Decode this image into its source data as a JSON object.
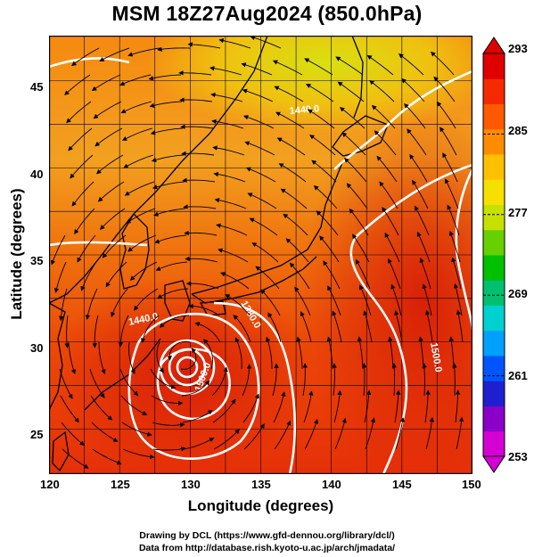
{
  "title": "MSM 18Z27Aug2024 (850.0hPa)",
  "xlabel": "Longitude (degrees)",
  "ylabel": "Latitude  (degrees)",
  "credits": {
    "line1": "Drawing by DCL (https://www.gfd-dennou.org/library/dcl/)",
    "line2": "Data from http://database.rish.kyoto-u.ac.jp/arch/jmadata/"
  },
  "map": {
    "lon_range": [
      120,
      150
    ],
    "lat_range": [
      22.4,
      47.6
    ],
    "lon_ticks": [
      "120",
      "125",
      "130",
      "135",
      "140",
      "145",
      "150"
    ],
    "lat_ticks": [
      "25",
      "30",
      "35",
      "40",
      "45"
    ],
    "grid_lon": [
      120,
      122.5,
      125,
      127.5,
      130,
      132.5,
      135,
      137.5,
      140,
      142.5,
      145,
      147.5,
      150
    ],
    "grid_lat": [
      25,
      27.5,
      30,
      32.5,
      35,
      37.5,
      40,
      42.5,
      45
    ],
    "typhoon_center": [
      129.6,
      29.1
    ],
    "contour_labels": [
      "1440.0",
      "1440.0",
      "1380.0",
      "1500.0",
      "1500.0"
    ]
  },
  "colorbar": {
    "min": 253,
    "max": 293,
    "tick_labels": [
      "293",
      "285",
      "277",
      "269",
      "261",
      "253"
    ],
    "colors": [
      "#d400d4",
      "#8a00c8",
      "#1f1fd0",
      "#0055ff",
      "#00a0ff",
      "#00d0d0",
      "#00c070",
      "#00c000",
      "#66d000",
      "#c8e000",
      "#f5e000",
      "#ffc000",
      "#ff8c00",
      "#ff5a00",
      "#f52a00",
      "#e00000"
    ]
  }
}
